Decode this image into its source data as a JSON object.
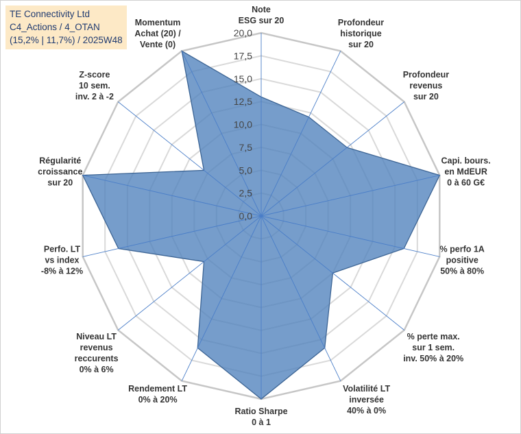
{
  "title_box": {
    "line1": "TE Connectivity Ltd",
    "line2": "C4_Actions / 4_OTAN",
    "line3": "(15,2% | 11,7%) / 2025W48"
  },
  "chart_data": {
    "type": "radar",
    "title": "TE Connectivity Ltd",
    "rlim": [
      0,
      20
    ],
    "rticks": [
      "0,0",
      "2,5",
      "5,0",
      "7,5",
      "10,0",
      "12,5",
      "15,0",
      "17,5",
      "20,0"
    ],
    "categories": [
      [
        "Note",
        "ESG sur 20"
      ],
      [
        "Profondeur",
        "historique",
        "sur 20"
      ],
      [
        "Profondeur",
        "revenus",
        "sur 20"
      ],
      [
        "Capi. bours.",
        "en MdEUR",
        "0 à 60 G€"
      ],
      [
        "% perfo 1A",
        "positive",
        "50% à 80%"
      ],
      [
        "% perte max.",
        "sur 1 sem.",
        "inv. 50% à 20%"
      ],
      [
        "Volatilité LT",
        "inversée",
        "40% à 0%"
      ],
      [
        "Ratio Sharpe",
        "0 à 1"
      ],
      [
        "Rendement LT",
        "0% à 20%"
      ],
      [
        "Niveau LT",
        "revenus",
        "reccurents",
        "0% à 6%"
      ],
      [
        "Perfo. LT",
        "vs index",
        "-8% à 12%"
      ],
      [
        "Régularité",
        "croissance",
        "sur 20"
      ],
      [
        "Z-score",
        "10 sem.",
        "inv. 2 à -2"
      ],
      [
        "Momentum",
        "Achat (20) /",
        "Vente (0)"
      ]
    ],
    "series": [
      {
        "name": "TE Connectivity Ltd",
        "color": "#4f81bd",
        "values": [
          13,
          12,
          12,
          20,
          16,
          10,
          16,
          20,
          16,
          8,
          16,
          20,
          8,
          20
        ]
      }
    ]
  }
}
